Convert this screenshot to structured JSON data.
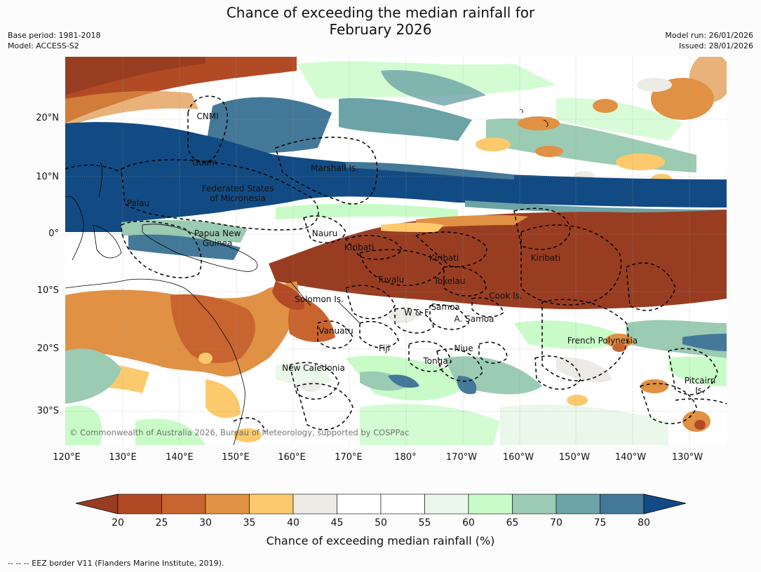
{
  "title_line1": "Chance of exceeding the median rainfall for",
  "title_line2": "February 2026",
  "meta": {
    "base_period": "Base period: 1981-2018",
    "model": "Model: ACCESS-S2",
    "model_run": "Model run: 26/01/2026",
    "issued": "Issued: 28/01/2026"
  },
  "map": {
    "copyright": "© Commonwealth of Australia 2026, Bureau of Meteorology, supported by COSPPac",
    "lat_labels": [
      "20°N",
      "10°N",
      "0°",
      "10°S",
      "20°S",
      "30°S"
    ],
    "lon_labels": [
      "120°E",
      "130°E",
      "140°E",
      "150°E",
      "160°E",
      "170°E",
      "180°",
      "170°W",
      "160°W",
      "150°W",
      "140°W",
      "130°W"
    ],
    "places": {
      "cnmi": "CNMI",
      "guam": "Guam",
      "marshall": "Marshall Is.",
      "fsm1": "Federated States",
      "fsm2": "of Micronesia",
      "palau": "Palau",
      "png1": "Papua New",
      "png2": "Guinea",
      "nauru": "Nauru",
      "kiribati_w": "Kiribati",
      "kiribati_c": "Kiribati",
      "kiribati_e": "Kiribati",
      "tuvalu": "Tuvalu",
      "tokelau": "Tokelau",
      "cook": "Cook Is.",
      "solomon": "Solomon Is.",
      "wallis": "W & F",
      "samoa": "Samoa",
      "am_samoa": "A. Samoa",
      "vanuatu": "Vanuatu",
      "fiji": "Fiji",
      "niue": "Niue",
      "tonga": "Tonga",
      "french_polynesia": "French Polynesia",
      "new_caledonia": "New Caledonia",
      "pitcairn1": "Pitcairn",
      "pitcairn2": "Is."
    }
  },
  "colorbar": {
    "title": "Chance of exceeding median rainfall (%)",
    "labels": [
      "20",
      "25",
      "30",
      "35",
      "40",
      "45",
      "50",
      "55",
      "60",
      "65",
      "70",
      "75",
      "80"
    ],
    "colors": [
      "#993d22",
      "#b24b25",
      "#c86430",
      "#e09143",
      "#fcca6c",
      "#ecebe6",
      "#ffffff",
      "#ffffff",
      "#eaf7ea",
      "#c8fbc8",
      "#9bcbb3",
      "#6ba3a6",
      "#447898",
      "#124b83"
    ]
  },
  "footer": "--  --  -- EEZ border V11 (Flanders Marine Institute, 2019)."
}
